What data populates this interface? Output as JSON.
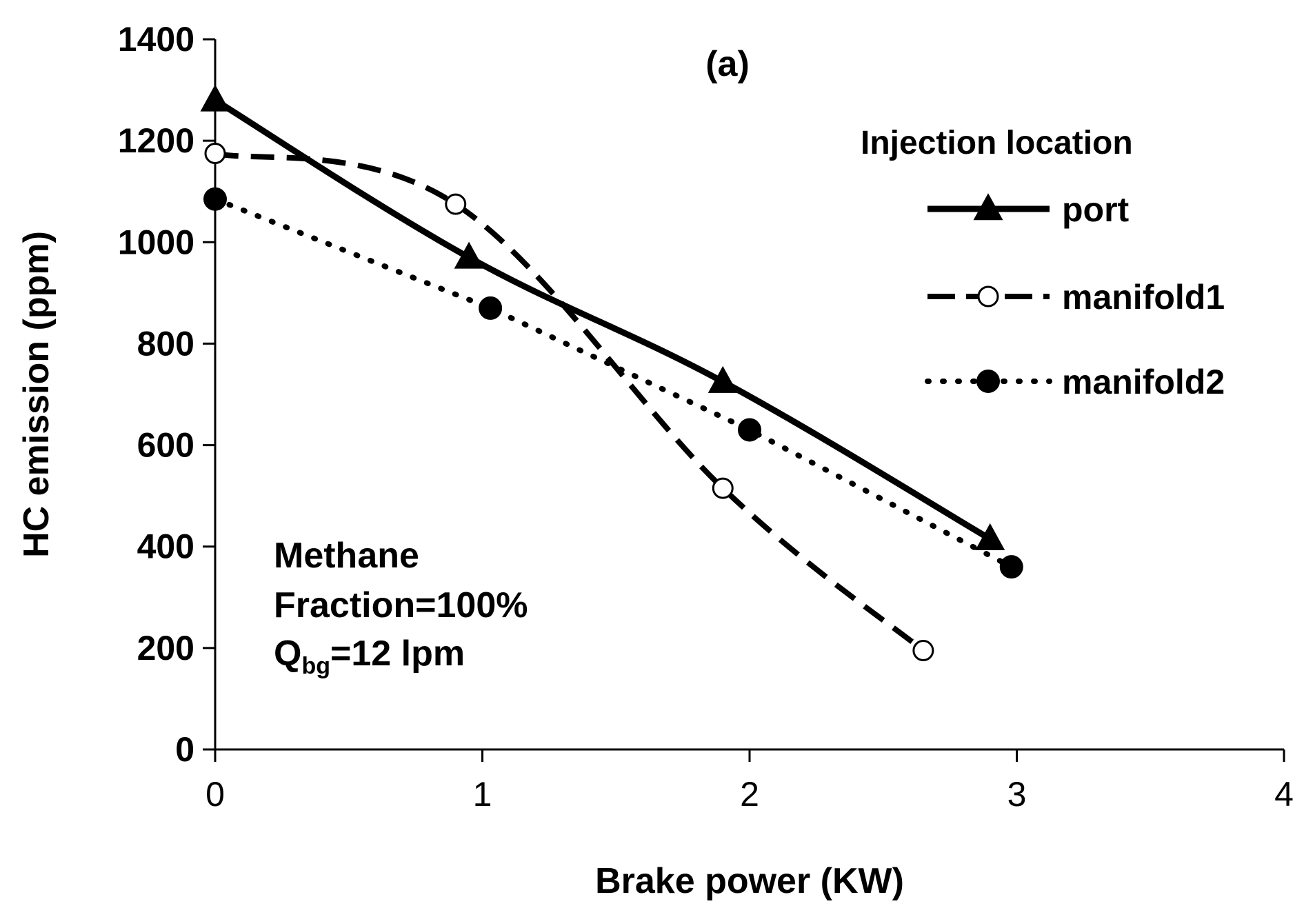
{
  "chart_data": {
    "type": "line",
    "panel_label": "(a)",
    "xlabel": "Brake power (KW)",
    "ylabel": "HC emission (ppm)",
    "xlim": [
      0,
      4
    ],
    "ylim": [
      0,
      1400
    ],
    "x_ticks": [
      0,
      1,
      2,
      3,
      4
    ],
    "y_ticks": [
      0,
      200,
      400,
      600,
      800,
      1000,
      1200,
      1400
    ],
    "grid": false,
    "legend": {
      "title": "Injection location",
      "position": "top-right"
    },
    "annotation": {
      "line1": "Methane",
      "line2": "Fraction=100%",
      "q_main": "Q",
      "q_sub": "bg",
      "q_rest": "=12 lpm"
    },
    "series": [
      {
        "name": "port",
        "line_style": "solid",
        "marker": "triangle-filled",
        "x": [
          0,
          0.95,
          1.9,
          2.9
        ],
        "y": [
          1280,
          970,
          725,
          415
        ]
      },
      {
        "name": "manifold1",
        "line_style": "dashed",
        "marker": "circle-open",
        "x": [
          0,
          0.9,
          1.9,
          2.65
        ],
        "y": [
          1175,
          1075,
          515,
          195
        ]
      },
      {
        "name": "manifold2",
        "line_style": "dotted",
        "marker": "circle-filled",
        "x": [
          0,
          1.03,
          2.0,
          2.98
        ],
        "y": [
          1085,
          870,
          630,
          360
        ]
      }
    ]
  }
}
